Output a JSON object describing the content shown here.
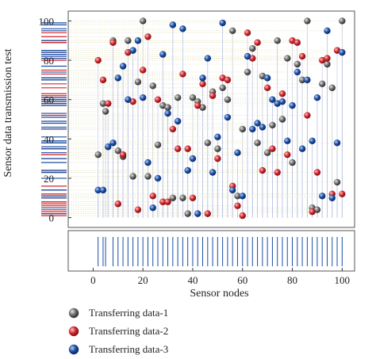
{
  "chart_data": {
    "type": "scatter",
    "title": "",
    "xlabel": "Sensor nodes",
    "ylabel": "Sensor data transmission test",
    "xlim": [
      -10,
      105
    ],
    "ylim": [
      -5,
      105
    ],
    "x_ticks": [
      0,
      20,
      40,
      60,
      80,
      100
    ],
    "y_ticks": [
      0,
      20,
      40,
      60,
      80,
      100
    ],
    "grid": false,
    "legend_position": "bottom",
    "series": [
      {
        "name": "Transferring data-1",
        "color": "#6b6b6b",
        "points": [
          [
            2,
            32
          ],
          [
            4,
            58
          ],
          [
            5,
            54
          ],
          [
            8,
            90
          ],
          [
            10,
            34
          ],
          [
            12,
            31
          ],
          [
            14,
            90
          ],
          [
            16,
            21
          ],
          [
            18,
            69
          ],
          [
            20,
            100
          ],
          [
            22,
            21
          ],
          [
            24,
            67
          ],
          [
            26,
            37
          ],
          [
            28,
            57
          ],
          [
            30,
            56
          ],
          [
            32,
            10
          ],
          [
            34,
            61
          ],
          [
            36,
            10
          ],
          [
            38,
            2
          ],
          [
            40,
            61
          ],
          [
            42,
            59
          ],
          [
            44,
            56
          ],
          [
            46,
            38
          ],
          [
            48,
            64
          ],
          [
            50,
            35
          ],
          [
            52,
            66
          ],
          [
            54,
            60
          ],
          [
            56,
            95
          ],
          [
            58,
            11
          ],
          [
            60,
            45
          ],
          [
            62,
            74
          ],
          [
            64,
            86
          ],
          [
            66,
            38
          ],
          [
            68,
            72
          ],
          [
            70,
            33
          ],
          [
            72,
            47
          ],
          [
            74,
            90
          ],
          [
            76,
            50
          ],
          [
            78,
            81
          ],
          [
            80,
            28
          ],
          [
            82,
            78
          ],
          [
            84,
            70
          ],
          [
            86,
            100
          ],
          [
            88,
            5
          ],
          [
            90,
            4
          ],
          [
            92,
            68
          ],
          [
            94,
            78
          ],
          [
            96,
            66
          ],
          [
            98,
            18
          ],
          [
            100,
            100
          ]
        ]
      },
      {
        "name": "Transferring data-2",
        "color": "#d0262c",
        "points": [
          [
            2,
            80
          ],
          [
            4,
            70
          ],
          [
            6,
            58
          ],
          [
            8,
            89
          ],
          [
            10,
            7
          ],
          [
            12,
            32
          ],
          [
            14,
            84
          ],
          [
            16,
            59
          ],
          [
            18,
            4
          ],
          [
            20,
            75
          ],
          [
            22,
            92
          ],
          [
            24,
            11
          ],
          [
            26,
            60
          ],
          [
            28,
            8
          ],
          [
            30,
            8
          ],
          [
            32,
            45
          ],
          [
            34,
            35
          ],
          [
            36,
            73
          ],
          [
            38,
            35
          ],
          [
            40,
            10
          ],
          [
            42,
            57
          ],
          [
            44,
            68
          ],
          [
            46,
            2
          ],
          [
            48,
            62
          ],
          [
            50,
            30
          ],
          [
            52,
            71
          ],
          [
            54,
            70
          ],
          [
            56,
            16
          ],
          [
            58,
            6
          ],
          [
            60,
            1
          ],
          [
            62,
            94
          ],
          [
            64,
            81
          ],
          [
            66,
            89
          ],
          [
            68,
            24
          ],
          [
            70,
            66
          ],
          [
            72,
            35
          ],
          [
            74,
            23
          ],
          [
            76,
            63
          ],
          [
            78,
            32
          ],
          [
            80,
            90
          ],
          [
            82,
            89
          ],
          [
            84,
            82
          ],
          [
            86,
            52
          ],
          [
            88,
            3
          ],
          [
            90,
            23
          ],
          [
            92,
            80
          ],
          [
            94,
            81
          ],
          [
            96,
            12
          ],
          [
            98,
            85
          ],
          [
            100,
            12
          ]
        ]
      },
      {
        "name": "Transferring data-3",
        "color": "#1a4ea6",
        "points": [
          [
            2,
            14
          ],
          [
            4,
            14
          ],
          [
            6,
            36
          ],
          [
            8,
            38
          ],
          [
            10,
            71
          ],
          [
            12,
            77
          ],
          [
            14,
            60
          ],
          [
            16,
            85
          ],
          [
            18,
            90
          ],
          [
            20,
            61
          ],
          [
            22,
            28
          ],
          [
            24,
            5
          ],
          [
            26,
            20
          ],
          [
            28,
            83
          ],
          [
            30,
            53
          ],
          [
            32,
            98
          ],
          [
            34,
            49
          ],
          [
            36,
            96
          ],
          [
            38,
            24
          ],
          [
            40,
            30
          ],
          [
            42,
            2
          ],
          [
            44,
            71
          ],
          [
            46,
            81
          ],
          [
            48,
            23
          ],
          [
            50,
            41
          ],
          [
            52,
            99
          ],
          [
            54,
            51
          ],
          [
            56,
            14
          ],
          [
            58,
            33
          ],
          [
            60,
            11
          ],
          [
            62,
            82
          ],
          [
            64,
            45
          ],
          [
            66,
            48
          ],
          [
            68,
            46
          ],
          [
            70,
            71
          ],
          [
            72,
            60
          ],
          [
            74,
            58
          ],
          [
            76,
            59
          ],
          [
            78,
            39
          ],
          [
            80,
            57
          ],
          [
            82,
            74
          ],
          [
            84,
            35
          ],
          [
            86,
            70
          ],
          [
            88,
            39
          ],
          [
            90,
            61
          ],
          [
            92,
            11
          ],
          [
            94,
            95
          ],
          [
            96,
            10
          ],
          [
            98,
            38
          ],
          [
            100,
            84
          ]
        ]
      }
    ]
  }
}
